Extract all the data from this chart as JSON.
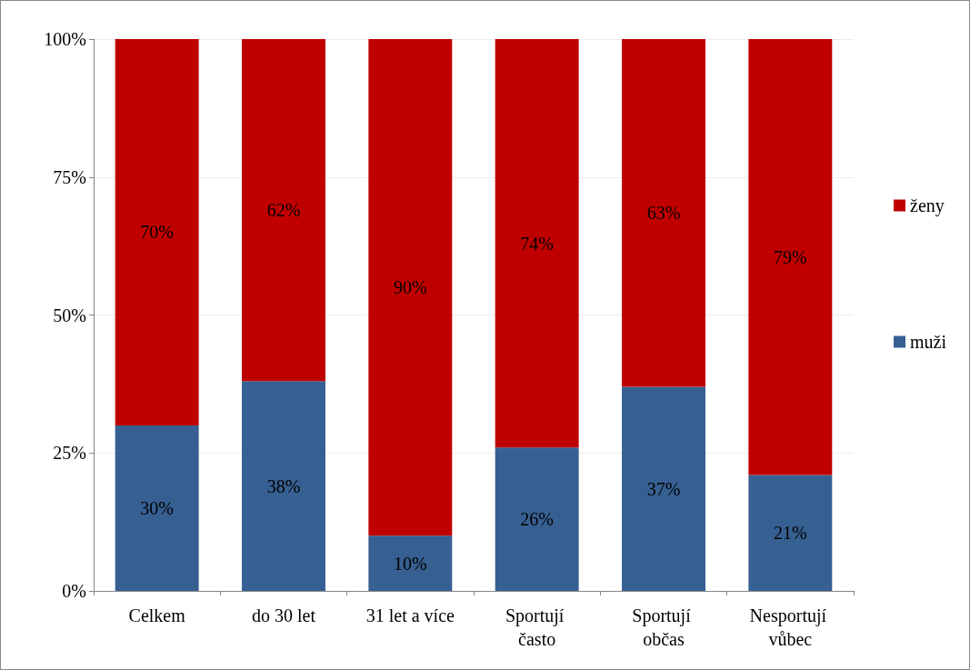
{
  "chart_data": {
    "type": "bar",
    "stacked": true,
    "categories": [
      "Celkem",
      "do 30 let",
      "31 let a více",
      "Sportují často",
      "Sportují občas",
      "Nesportují vůbec"
    ],
    "series": [
      {
        "name": "muži",
        "color": "#376092",
        "values": [
          30,
          38,
          10,
          26,
          37,
          21
        ],
        "value_labels": [
          "30%",
          "38%",
          "10%",
          "26%",
          "37%",
          "21%"
        ]
      },
      {
        "name": "ženy",
        "color": "#c00000",
        "values": [
          70,
          62,
          90,
          74,
          63,
          79
        ],
        "value_labels": [
          "70%",
          "62%",
          "90%",
          "74%",
          "63%",
          "79%"
        ]
      }
    ],
    "ylim": [
      0,
      100
    ],
    "yticks": [
      {
        "value": 0,
        "label": "0%"
      },
      {
        "value": 25,
        "label": "25%"
      },
      {
        "value": 50,
        "label": "50%"
      },
      {
        "value": 75,
        "label": "75%"
      },
      {
        "value": 100,
        "label": "100%"
      }
    ],
    "grid": "y",
    "legend": "right"
  }
}
